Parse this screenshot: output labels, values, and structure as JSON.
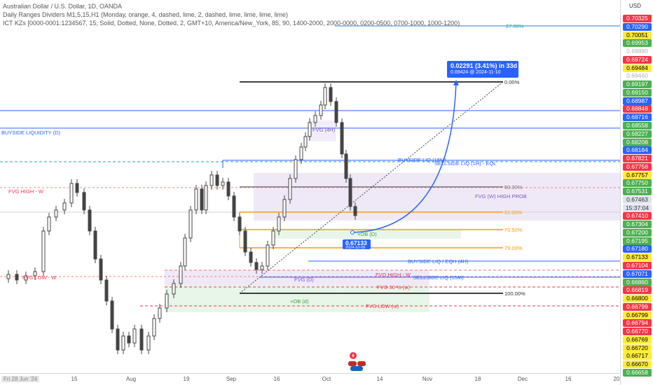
{
  "header": {
    "symbol_line": "Australian Dollar / U.S. Dollar, 1D, OANDA",
    "indicator_1": "Daily Ranges Dividers M1,5,15,H1 (Monday, orange, 4, dashed, lime, 2, dashed, lime, lime, lime, lime)",
    "indicator_2": "ICT KZs [0000-0001:1234567, 15, Solid, Dotted, None, Dotted, 2, GMT+10, America/New_York, 85, 90, 1400-2000, 2000-0000, 0200-0500, 0700-1000, 1000-1200)"
  },
  "price_axis": {
    "currency": "USD",
    "labels": [
      {
        "text": "0.70325",
        "bg": "#f23645",
        "fg": "#ffffff"
      },
      {
        "text": "0.70290",
        "bg": "#2962ff",
        "fg": "#ffffff"
      },
      {
        "text": "0.70051",
        "bg": "#ffeb3b",
        "fg": "#000000"
      },
      {
        "text": "0.69953",
        "bg": "#4caf50",
        "fg": "#ffffff"
      },
      {
        "text": "0.69880",
        "bg": "#ffffff",
        "fg": "#b0b0b0"
      },
      {
        "text": "0.69724",
        "bg": "#f23645",
        "fg": "#ffffff"
      },
      {
        "text": "0.69484",
        "bg": "#ffeb3b",
        "fg": "#000000"
      },
      {
        "text": "0.69460",
        "bg": "#ffffff",
        "fg": "#b0b0b0"
      },
      {
        "text": "0.69197",
        "bg": "#4caf50",
        "fg": "#ffffff"
      },
      {
        "text": "0.69150",
        "bg": "#4caf50",
        "fg": "#ffffff"
      },
      {
        "text": "0.68987",
        "bg": "#2962ff",
        "fg": "#ffffff"
      },
      {
        "text": "0.68848",
        "bg": "#f23645",
        "fg": "#ffffff"
      },
      {
        "text": "0.68716",
        "bg": "#2962ff",
        "fg": "#ffffff"
      },
      {
        "text": "0.68558",
        "bg": "#4caf50",
        "fg": "#ffffff"
      },
      {
        "text": "0.68227",
        "bg": "#4caf50",
        "fg": "#ffffff"
      },
      {
        "text": "0.68208",
        "bg": "#4caf50",
        "fg": "#ffffff"
      },
      {
        "text": "0.68184",
        "bg": "#2962ff",
        "fg": "#ffffff"
      },
      {
        "text": "0.67821",
        "bg": "#f23645",
        "fg": "#ffffff"
      },
      {
        "text": "0.67758",
        "bg": "#f23645",
        "fg": "#ffffff"
      },
      {
        "text": "0.67757",
        "bg": "#ffeb3b",
        "fg": "#000000"
      },
      {
        "text": "0.67750",
        "bg": "#4caf50",
        "fg": "#ffffff"
      },
      {
        "text": "0.67531",
        "bg": "#4caf50",
        "fg": "#ffffff"
      },
      {
        "text": "0.67463",
        "bg": "#e0e3eb",
        "fg": "#333333"
      },
      {
        "text": "15:37:04",
        "bg": "#e0e3eb",
        "fg": "#333333"
      },
      {
        "text": "0.67410",
        "bg": "#f23645",
        "fg": "#ffffff"
      },
      {
        "text": "0.67304",
        "bg": "#4caf50",
        "fg": "#ffffff"
      },
      {
        "text": "0.67200",
        "bg": "#4caf50",
        "fg": "#ffffff"
      },
      {
        "text": "0.67195",
        "bg": "#4caf50",
        "fg": "#ffffff"
      },
      {
        "text": "0.67180",
        "bg": "#2962ff",
        "fg": "#ffffff"
      },
      {
        "text": "0.67133",
        "bg": "#ffeb3b",
        "fg": "#000000"
      },
      {
        "text": "0.67104",
        "bg": "#f23645",
        "fg": "#ffffff"
      },
      {
        "text": "0.67071",
        "bg": "#2962ff",
        "fg": "#ffffff"
      },
      {
        "text": "0.66860",
        "bg": "#4caf50",
        "fg": "#ffffff"
      },
      {
        "text": "0.66819",
        "bg": "#f23645",
        "fg": "#ffffff"
      },
      {
        "text": "0.66800",
        "bg": "#ffeb3b",
        "fg": "#000000"
      },
      {
        "text": "0.66799",
        "bg": "#f23645",
        "fg": "#ffffff"
      },
      {
        "text": "0.66799",
        "bg": "#ffeb3b",
        "fg": "#000000"
      },
      {
        "text": "0.66794",
        "bg": "#f23645",
        "fg": "#ffffff"
      },
      {
        "text": "0.66770",
        "bg": "#f23645",
        "fg": "#ffffff"
      },
      {
        "text": "0.66769",
        "bg": "#ffeb3b",
        "fg": "#000000"
      },
      {
        "text": "0.66720",
        "bg": "#ffeb3b",
        "fg": "#000000"
      },
      {
        "text": "0.66717",
        "bg": "#ffeb3b",
        "fg": "#000000"
      },
      {
        "text": "0.66670",
        "bg": "#ffeb3b",
        "fg": "#000000"
      },
      {
        "text": "0.66658",
        "bg": "#4caf50",
        "fg": "#ffffff"
      }
    ]
  },
  "time_axis": {
    "first": "Fri 28 Jun '24",
    "labels": [
      "15",
      "Aug",
      "19",
      "Sep",
      "16",
      "Oct",
      "14",
      "Nov",
      "18",
      "Dec",
      "16",
      "20"
    ]
  },
  "annotations": {
    "projection_line1": "0.02291 (3.41%) in 33d",
    "projection_line2": "0.69424 @ 2024-11-10",
    "ob_price": "0.67133",
    "ob_date": "2024-10-09",
    "fib_0": "0.00%",
    "fib_27": "27.00%",
    "fib_50": "50.00%",
    "fib_62": "62.00%",
    "fib_705": "70.50%",
    "fib_79": "79.00%",
    "fib_100": "100.00%",
    "buyside_liq_d": "BUYSIDE LIQUIDITY (D)",
    "buyside_liq_15m": "BUYSIDE LIQ (15M)",
    "sellside_liq_1h": "SELLSIDE LIQ (1H) - EQL",
    "fvg_w_high_prob": "FVG (W) HIGH PROB",
    "buyside_liq_eqh_4h": "BUYSIDE LIQ / EQH (4H)",
    "sellside_liq_15m": "SELLSIDE LIQ (15M)",
    "fvg_high_w_left": "FVG HIGH - W",
    "fvg_low_w_left": "FVG LOW - W",
    "fvg_high_w": "FVG HIGH - W",
    "fvg_50_w": "FVG 50 % (w)",
    "fvg_low_w": "FVG LOW (w)",
    "fvg_d": "FVG (D)",
    "plus_ob_d": "+OB (d)",
    "ob_d": "+OB (D)",
    "fvg_4h": "FVG (4H)"
  }
}
